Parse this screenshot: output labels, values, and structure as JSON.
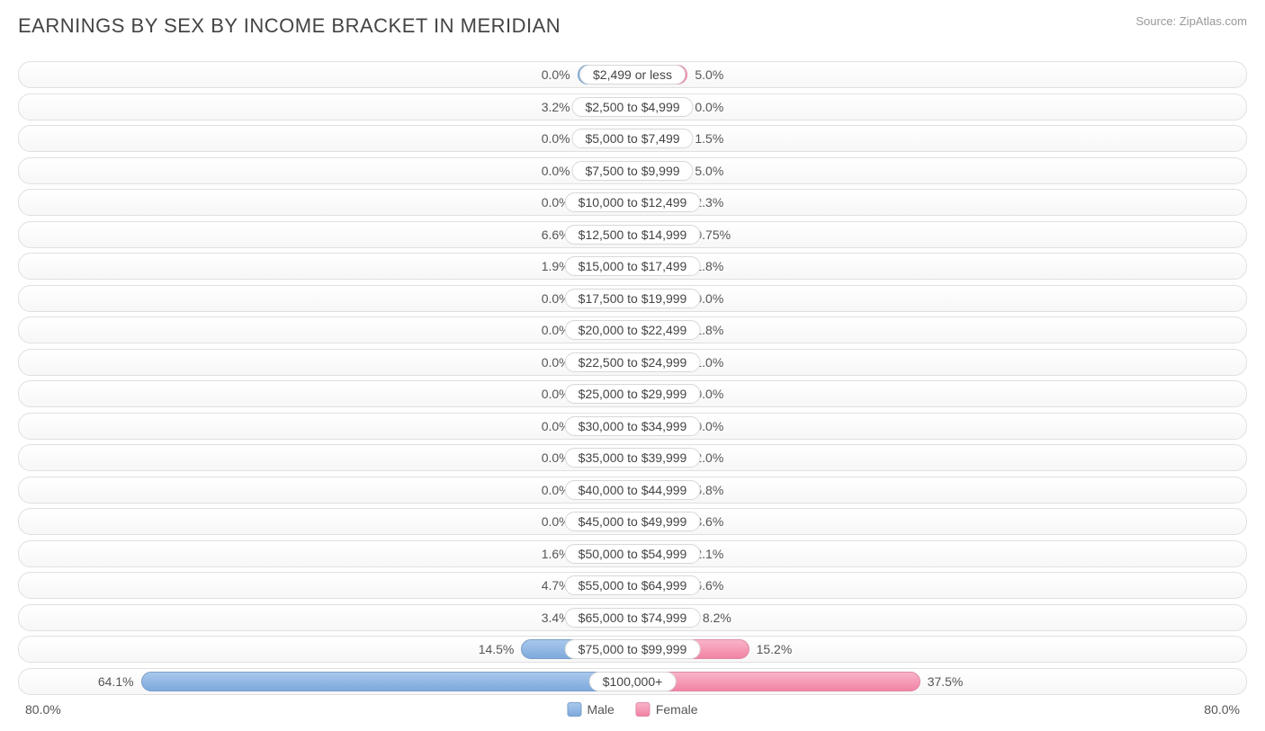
{
  "title": "EARNINGS BY SEX BY INCOME BRACKET IN MERIDIAN",
  "source": "Source: ZipAtlas.com",
  "chart": {
    "type": "diverging-bar",
    "axis_max": 80.0,
    "axis_label_left": "80.0%",
    "axis_label_right": "80.0%",
    "male_color": "#8ab2e0",
    "female_color": "#f495b2",
    "track_border_color": "#e0e0e0",
    "background_color": "#ffffff",
    "bar_min_percent": 9.0,
    "rows": [
      {
        "category": "$2,499 or less",
        "male": 0.0,
        "female": 5.0,
        "male_label": "0.0%",
        "female_label": "5.0%"
      },
      {
        "category": "$2,500 to $4,999",
        "male": 3.2,
        "female": 0.0,
        "male_label": "3.2%",
        "female_label": "0.0%"
      },
      {
        "category": "$5,000 to $7,499",
        "male": 0.0,
        "female": 1.5,
        "male_label": "0.0%",
        "female_label": "1.5%"
      },
      {
        "category": "$7,500 to $9,999",
        "male": 0.0,
        "female": 5.0,
        "male_label": "0.0%",
        "female_label": "5.0%"
      },
      {
        "category": "$10,000 to $12,499",
        "male": 0.0,
        "female": 2.3,
        "male_label": "0.0%",
        "female_label": "2.3%"
      },
      {
        "category": "$12,500 to $14,999",
        "male": 6.6,
        "female": 0.75,
        "male_label": "6.6%",
        "female_label": "0.75%"
      },
      {
        "category": "$15,000 to $17,499",
        "male": 1.9,
        "female": 1.8,
        "male_label": "1.9%",
        "female_label": "1.8%"
      },
      {
        "category": "$17,500 to $19,999",
        "male": 0.0,
        "female": 0.0,
        "male_label": "0.0%",
        "female_label": "0.0%"
      },
      {
        "category": "$20,000 to $22,499",
        "male": 0.0,
        "female": 1.8,
        "male_label": "0.0%",
        "female_label": "1.8%"
      },
      {
        "category": "$22,500 to $24,999",
        "male": 0.0,
        "female": 1.0,
        "male_label": "0.0%",
        "female_label": "1.0%"
      },
      {
        "category": "$25,000 to $29,999",
        "male": 0.0,
        "female": 0.0,
        "male_label": "0.0%",
        "female_label": "0.0%"
      },
      {
        "category": "$30,000 to $34,999",
        "male": 0.0,
        "female": 0.0,
        "male_label": "0.0%",
        "female_label": "0.0%"
      },
      {
        "category": "$35,000 to $39,999",
        "male": 0.0,
        "female": 2.0,
        "male_label": "0.0%",
        "female_label": "2.0%"
      },
      {
        "category": "$40,000 to $44,999",
        "male": 0.0,
        "female": 5.8,
        "male_label": "0.0%",
        "female_label": "5.8%"
      },
      {
        "category": "$45,000 to $49,999",
        "male": 0.0,
        "female": 3.6,
        "male_label": "0.0%",
        "female_label": "3.6%"
      },
      {
        "category": "$50,000 to $54,999",
        "male": 1.6,
        "female": 2.1,
        "male_label": "1.6%",
        "female_label": "2.1%"
      },
      {
        "category": "$55,000 to $64,999",
        "male": 4.7,
        "female": 6.6,
        "male_label": "4.7%",
        "female_label": "6.6%"
      },
      {
        "category": "$65,000 to $74,999",
        "male": 3.4,
        "female": 8.2,
        "male_label": "3.4%",
        "female_label": "8.2%"
      },
      {
        "category": "$75,000 to $99,999",
        "male": 14.5,
        "female": 15.2,
        "male_label": "14.5%",
        "female_label": "15.2%"
      },
      {
        "category": "$100,000+",
        "male": 64.1,
        "female": 37.5,
        "male_label": "64.1%",
        "female_label": "37.5%"
      }
    ]
  },
  "legend": {
    "male": "Male",
    "female": "Female"
  }
}
